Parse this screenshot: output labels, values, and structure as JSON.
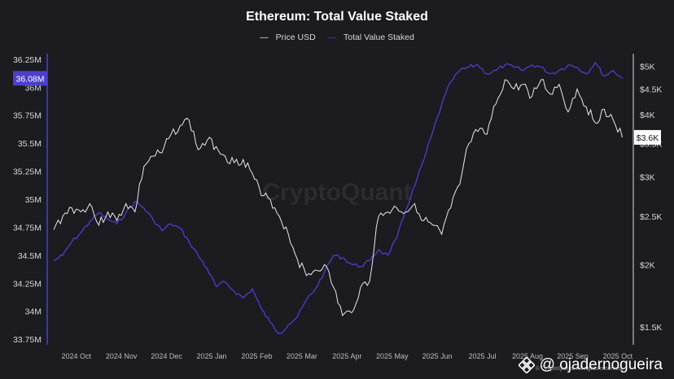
{
  "title": "Ethereum: Total Value Staked",
  "legend": {
    "price_label": "Price USD",
    "staked_label": "Total Value Staked"
  },
  "colors": {
    "price": "#e8e8e8",
    "staked": "#4b3fd1",
    "background": "#1c1b20",
    "axis": "#d8d8d8"
  },
  "watermark": {
    "center": "CryptoQuant",
    "brand": "@ ojadernogueira",
    "corner": "© CryptoQuant. All rights reserved."
  },
  "chart_data": {
    "type": "line",
    "title": "Ethereum: Total Value Staked",
    "x_ticks": [
      "2024 Oct",
      "2024 Nov",
      "2024 Dec",
      "2025 Jan",
      "2025 Feb",
      "2025 Mar",
      "2025 Apr",
      "2025 May",
      "2025 Jun",
      "2025 Jul",
      "2025 Aug",
      "2025 Sep",
      "2025 Oct"
    ],
    "x_range": [
      0,
      12.7
    ],
    "left_axis": {
      "ticks": [
        "36.25M",
        "36M",
        "35.75M",
        "35.5M",
        "35.25M",
        "35M",
        "34.75M",
        "34.5M",
        "34.25M",
        "34M",
        "33.75M"
      ],
      "tick_values": [
        36.25,
        36.0,
        35.75,
        35.5,
        35.25,
        35.0,
        34.75,
        34.5,
        34.25,
        34.0,
        33.75
      ],
      "range": [
        33.7,
        36.3
      ],
      "current_label": "36.08M",
      "current_value": 36.08
    },
    "right_axis": {
      "ticks": [
        "$5K",
        "$4.5K",
        "$4K",
        "$3.5K",
        "$3K",
        "$2.5K",
        "$2K",
        "$1.5K"
      ],
      "tick_values": [
        5000,
        4500,
        4000,
        3500,
        3000,
        2500,
        2000,
        1500
      ],
      "scale": "log",
      "range": [
        1380,
        5300
      ],
      "current_label": "$3.6K",
      "current_value": 3600
    },
    "series": [
      {
        "name": "Total Value Staked",
        "axis": "left",
        "x": [
          0,
          0.2,
          0.4,
          0.6,
          0.8,
          1.0,
          1.2,
          1.4,
          1.6,
          1.8,
          2.0,
          2.2,
          2.4,
          2.6,
          2.8,
          3.0,
          3.2,
          3.4,
          3.6,
          3.8,
          4.0,
          4.2,
          4.4,
          4.6,
          4.8,
          5.0,
          5.2,
          5.4,
          5.6,
          5.8,
          6.0,
          6.2,
          6.4,
          6.6,
          6.8,
          7.0,
          7.2,
          7.4,
          7.6,
          7.8,
          8.0,
          8.2,
          8.4,
          8.6,
          8.8,
          9.0,
          9.2,
          9.4,
          9.6,
          9.8,
          10.0,
          10.2,
          10.4,
          10.6,
          10.8,
          11.0,
          11.2,
          11.4,
          11.6,
          11.8,
          12.0,
          12.2,
          12.4,
          12.6
        ],
        "values": [
          34.45,
          34.5,
          34.62,
          34.7,
          34.8,
          34.88,
          34.82,
          34.78,
          34.88,
          34.98,
          34.92,
          34.82,
          34.72,
          34.78,
          34.74,
          34.62,
          34.5,
          34.38,
          34.22,
          34.26,
          34.18,
          34.12,
          34.2,
          34.02,
          33.9,
          33.8,
          33.88,
          33.95,
          34.1,
          34.2,
          34.35,
          34.5,
          34.48,
          34.42,
          34.4,
          34.45,
          34.55,
          34.5,
          34.65,
          34.9,
          35.12,
          35.35,
          35.6,
          35.85,
          36.05,
          36.15,
          36.18,
          36.2,
          36.12,
          36.15,
          36.2,
          36.18,
          36.15,
          36.2,
          36.18,
          36.12,
          36.15,
          36.2,
          36.18,
          36.12,
          36.22,
          36.1,
          36.15,
          36.08
        ]
      },
      {
        "name": "Price USD",
        "axis": "right",
        "x": [
          0,
          0.2,
          0.4,
          0.6,
          0.8,
          1.0,
          1.2,
          1.4,
          1.6,
          1.8,
          2.0,
          2.2,
          2.4,
          2.6,
          2.8,
          3.0,
          3.2,
          3.4,
          3.6,
          3.8,
          4.0,
          4.2,
          4.4,
          4.6,
          4.8,
          5.0,
          5.2,
          5.4,
          5.6,
          5.8,
          6.0,
          6.2,
          6.4,
          6.6,
          6.8,
          7.0,
          7.2,
          7.4,
          7.6,
          7.8,
          8.0,
          8.2,
          8.4,
          8.6,
          8.8,
          9.0,
          9.2,
          9.4,
          9.6,
          9.8,
          10.0,
          10.2,
          10.4,
          10.6,
          10.8,
          11.0,
          11.2,
          11.4,
          11.6,
          11.8,
          12.0,
          12.2,
          12.4,
          12.6
        ],
        "values": [
          2350,
          2500,
          2600,
          2550,
          2650,
          2400,
          2550,
          2450,
          2650,
          2550,
          3150,
          3300,
          3350,
          3650,
          3800,
          3900,
          3400,
          3550,
          3450,
          3300,
          3200,
          3250,
          3050,
          2750,
          2700,
          2500,
          2300,
          2050,
          1900,
          1950,
          2000,
          1800,
          1580,
          1600,
          1800,
          1850,
          2500,
          2550,
          2600,
          2550,
          2650,
          2450,
          2400,
          2300,
          2600,
          2900,
          3500,
          3700,
          3650,
          4200,
          4700,
          4500,
          4600,
          4350,
          4700,
          4400,
          4600,
          4050,
          4500,
          4150,
          3850,
          4100,
          3900,
          3600
        ]
      }
    ]
  }
}
